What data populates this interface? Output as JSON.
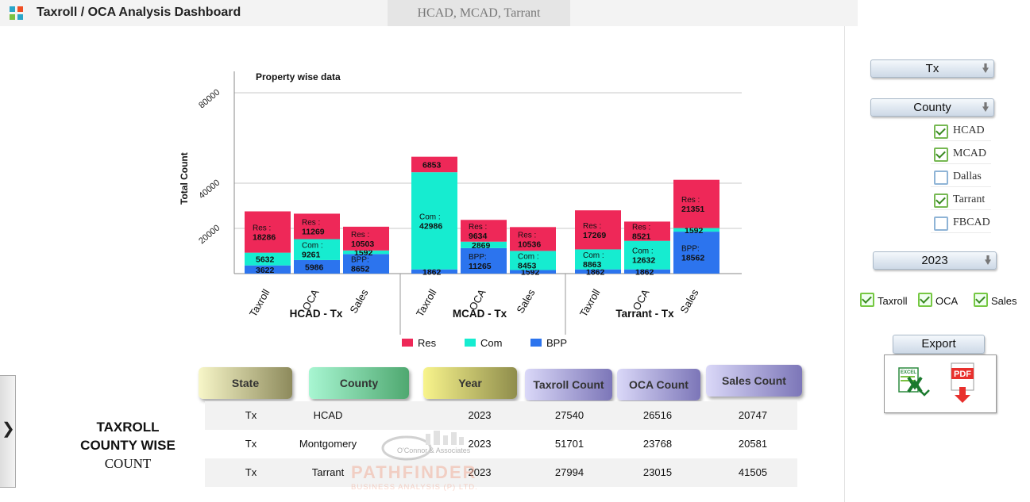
{
  "header": {
    "title": "Taxroll / OCA Analysis Dashboard",
    "tab_label": "HCAD, MCAD, Tarrant"
  },
  "chart_data": {
    "type": "bar",
    "stacked": true,
    "title": "Property wise data",
    "ylabel": "Total Count",
    "xlabel": "",
    "ylim": [
      0,
      80000
    ],
    "y_ticks": [
      "20000",
      "40000",
      "80000"
    ],
    "groups": [
      "HCAD - Tx",
      "MCAD - Tx",
      "Tarrant - Tx"
    ],
    "categories": [
      "Taxroll",
      "OCA",
      "Sales"
    ],
    "series": [
      {
        "name": "BPP",
        "label_prefix": "BPP:",
        "color": "#2c74ee",
        "values": [
          [
            3622,
            5986,
            8652
          ],
          [
            1862,
            11265,
            1592
          ],
          [
            1862,
            1862,
            18562
          ]
        ]
      },
      {
        "name": "Com",
        "label_prefix": "Com :",
        "color": "#16ecd0",
        "values": [
          [
            5632,
            9261,
            1592
          ],
          [
            42986,
            2869,
            8453
          ],
          [
            8863,
            12632,
            1592
          ]
        ]
      },
      {
        "name": "Res",
        "label_prefix": "Res :",
        "color": "#ee2858",
        "values": [
          [
            18286,
            11269,
            10503
          ],
          [
            6853,
            9634,
            10536
          ],
          [
            17269,
            8521,
            21351
          ]
        ]
      }
    ],
    "legend": [
      "Res",
      "Com",
      "BPP"
    ],
    "legend_position": "bottom",
    "grid": true
  },
  "filters": {
    "state": "Tx",
    "county_label": "County",
    "counties": [
      {
        "name": "HCAD",
        "checked": true
      },
      {
        "name": "MCAD",
        "checked": true
      },
      {
        "name": "Dallas",
        "checked": false
      },
      {
        "name": "Tarrant",
        "checked": true
      },
      {
        "name": "FBCAD",
        "checked": false
      }
    ],
    "year": "2023",
    "metrics": [
      {
        "name": "Taxroll",
        "checked": true
      },
      {
        "name": "OCA",
        "checked": true
      },
      {
        "name": "Sales",
        "checked": true
      }
    ]
  },
  "export": {
    "label": "Export",
    "excel_text": "EXCEL",
    "pdf_text": "PDF"
  },
  "table": {
    "title_lines": [
      "TAXROLL",
      "COUNTY WISE",
      "COUNT"
    ],
    "headers": [
      "State",
      "County",
      "Year",
      "Taxroll Count",
      "OCA Count",
      "Sales Count"
    ],
    "rows": [
      [
        "Tx",
        "HCAD",
        "2023",
        "27540",
        "26516",
        "20747"
      ],
      [
        "Tx",
        "Montgomery",
        "2023",
        "51701",
        "23768",
        "20581"
      ],
      [
        "Tx",
        "Tarrant",
        "2023",
        "27994",
        "23015",
        "41505"
      ]
    ]
  },
  "watermark": {
    "line1": "O'Connor & Associates",
    "line2": "PATHFINDER",
    "line3": "BUSINESS ANALYSIS (P) LTD."
  },
  "colors": {
    "res": "#ee2858",
    "com": "#16ecd0",
    "bpp": "#2c74ee",
    "check": "#76b852"
  }
}
